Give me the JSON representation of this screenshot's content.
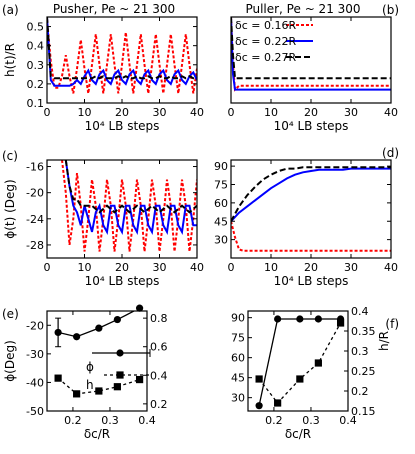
{
  "chart_data": [
    {
      "panel": "(a)",
      "type": "line",
      "title": "Pusher, Pe ~ 21 300",
      "xlabel": "10⁴ LB steps",
      "ylabel": "h(t)/R",
      "xlim": [
        0,
        40
      ],
      "ylim": [
        0.1,
        0.55
      ],
      "xticks": [
        0,
        10,
        20,
        30,
        40
      ],
      "yticks": [
        0.1,
        0.2,
        0.3,
        0.4,
        0.5
      ],
      "series": [
        {
          "name": "δc = 0.16R",
          "color": "#ff0000",
          "dash": "3,2",
          "x": [
            0,
            1,
            2,
            3,
            4,
            5,
            6,
            7,
            8,
            9,
            10,
            11,
            12,
            13,
            14,
            15,
            16,
            17,
            18,
            19,
            20,
            21,
            22,
            23,
            24,
            25,
            26,
            27,
            28,
            29,
            30,
            31,
            32,
            33,
            34,
            35,
            36,
            37,
            38,
            39,
            40
          ],
          "y": [
            0.54,
            0.32,
            0.18,
            0.18,
            0.24,
            0.35,
            0.24,
            0.15,
            0.28,
            0.43,
            0.28,
            0.15,
            0.3,
            0.46,
            0.3,
            0.15,
            0.3,
            0.46,
            0.3,
            0.15,
            0.3,
            0.47,
            0.3,
            0.15,
            0.3,
            0.46,
            0.3,
            0.15,
            0.3,
            0.46,
            0.3,
            0.15,
            0.3,
            0.46,
            0.3,
            0.15,
            0.3,
            0.46,
            0.3,
            0.15,
            0.28
          ]
        },
        {
          "name": "δc = 0.22R",
          "color": "#0000ff",
          "dash": "",
          "x": [
            0,
            1,
            2,
            3,
            4,
            5,
            6,
            7,
            8,
            9,
            10,
            11,
            12,
            13,
            14,
            15,
            16,
            17,
            18,
            19,
            20,
            21,
            22,
            23,
            24,
            25,
            26,
            27,
            28,
            29,
            30,
            31,
            32,
            33,
            34,
            35,
            36,
            37,
            38,
            39,
            40
          ],
          "y": [
            0.55,
            0.22,
            0.19,
            0.19,
            0.19,
            0.19,
            0.19,
            0.2,
            0.22,
            0.2,
            0.24,
            0.27,
            0.22,
            0.2,
            0.25,
            0.27,
            0.22,
            0.2,
            0.25,
            0.27,
            0.22,
            0.2,
            0.25,
            0.27,
            0.22,
            0.2,
            0.25,
            0.27,
            0.22,
            0.2,
            0.25,
            0.27,
            0.22,
            0.2,
            0.25,
            0.27,
            0.22,
            0.2,
            0.24,
            0.26,
            0.22
          ]
        },
        {
          "name": "δc = 0.27R",
          "color": "#000000",
          "dash": "6,3",
          "x": [
            0,
            1,
            2,
            3,
            4,
            5,
            6,
            7,
            8,
            9,
            10,
            11,
            12,
            13,
            14,
            15,
            16,
            17,
            18,
            19,
            20,
            21,
            22,
            23,
            24,
            25,
            26,
            27,
            28,
            29,
            30,
            31,
            32,
            33,
            34,
            35,
            36,
            37,
            38,
            39,
            40
          ],
          "y": [
            0.55,
            0.24,
            0.23,
            0.23,
            0.23,
            0.23,
            0.23,
            0.23,
            0.23,
            0.23,
            0.23,
            0.23,
            0.23,
            0.24,
            0.23,
            0.24,
            0.23,
            0.23,
            0.23,
            0.24,
            0.23,
            0.24,
            0.23,
            0.23,
            0.24,
            0.23,
            0.23,
            0.24,
            0.23,
            0.23,
            0.24,
            0.23,
            0.23,
            0.24,
            0.23,
            0.23,
            0.24,
            0.23,
            0.24,
            0.23,
            0.23
          ]
        }
      ]
    },
    {
      "panel": "(b)",
      "type": "line",
      "title": "Puller, Pe ~ 21 300",
      "xlabel": "10⁴ LB steps",
      "ylabel": "",
      "xlim": [
        0,
        40
      ],
      "ylim": [
        0.1,
        0.55
      ],
      "xticks": [
        0,
        10,
        20,
        30,
        40
      ],
      "yticks": [],
      "legend": [
        "δc = 0.16R",
        "δc = 0.22R",
        "δc = 0.27R"
      ],
      "series": [
        {
          "name": "δc = 0.16R",
          "color": "#ff0000",
          "dash": "3,2",
          "x": [
            0,
            0.5,
            1,
            2,
            4,
            6,
            8,
            10,
            12,
            14,
            16,
            18,
            20,
            22,
            24,
            26,
            28,
            30,
            32,
            34,
            36,
            38,
            40
          ],
          "y": [
            0.55,
            0.3,
            0.17,
            0.19,
            0.19,
            0.19,
            0.19,
            0.19,
            0.19,
            0.19,
            0.19,
            0.19,
            0.19,
            0.19,
            0.19,
            0.19,
            0.19,
            0.19,
            0.19,
            0.19,
            0.19,
            0.19,
            0.19
          ]
        },
        {
          "name": "δc = 0.22R",
          "color": "#0000ff",
          "dash": "",
          "x": [
            0,
            0.5,
            1,
            2,
            40
          ],
          "y": [
            0.55,
            0.25,
            0.17,
            0.17,
            0.17
          ]
        },
        {
          "name": "δc = 0.27R",
          "color": "#000000",
          "dash": "6,3",
          "x": [
            0,
            0.5,
            1,
            2,
            40
          ],
          "y": [
            0.55,
            0.35,
            0.23,
            0.23,
            0.23
          ]
        }
      ]
    },
    {
      "panel": "(c)",
      "type": "line",
      "title": "",
      "xlabel": "10⁴ LB steps",
      "ylabel": "ϕ(t) (Deg)",
      "xlim": [
        0,
        40
      ],
      "ylim": [
        -30,
        -15
      ],
      "xticks": [
        0,
        10,
        20,
        30,
        40
      ],
      "yticks": [
        -16,
        -20,
        -24,
        -28
      ],
      "series": [
        {
          "name": "δc = 0.16R",
          "color": "#ff0000",
          "dash": "3,2",
          "x": [
            4,
            5,
            6,
            7,
            8,
            9,
            10,
            11,
            12,
            13,
            14,
            15,
            16,
            17,
            18,
            19,
            20,
            21,
            22,
            23,
            24,
            25,
            26,
            27,
            28,
            29,
            30,
            31,
            32,
            33,
            34,
            35,
            36,
            37,
            38,
            39,
            40
          ],
          "y": [
            -15,
            -20,
            -28,
            -24,
            -17,
            -22,
            -29,
            -24,
            -18,
            -22,
            -29,
            -24,
            -18,
            -22,
            -29,
            -24,
            -18,
            -22,
            -29,
            -24,
            -18,
            -22,
            -29,
            -24,
            -18,
            -22,
            -29,
            -24,
            -18,
            -22,
            -29,
            -24,
            -18,
            -22,
            -29,
            -24,
            -18
          ]
        },
        {
          "name": "δc = 0.22R",
          "color": "#0000ff",
          "dash": "",
          "x": [
            5,
            6,
            7,
            8,
            9,
            10,
            11,
            12,
            13,
            14,
            15,
            16,
            17,
            18,
            19,
            20,
            21,
            22,
            23,
            24,
            25,
            26,
            27,
            28,
            29,
            30,
            31,
            32,
            33,
            34,
            35,
            36,
            37,
            38,
            39,
            40
          ],
          "y": [
            -15,
            -19,
            -22,
            -23,
            -25,
            -22,
            -24,
            -26,
            -23,
            -22,
            -25,
            -26,
            -22,
            -22,
            -25,
            -26,
            -22,
            -22,
            -25,
            -26,
            -22,
            -22,
            -25,
            -26,
            -22,
            -22,
            -25,
            -26,
            -22,
            -22,
            -25,
            -26,
            -22,
            -22,
            -25,
            -25
          ]
        },
        {
          "name": "δc = 0.27R",
          "color": "#000000",
          "dash": "6,3",
          "x": [
            5,
            6,
            7,
            8,
            9,
            10,
            12,
            14,
            16,
            18,
            20,
            22,
            24,
            26,
            28,
            30,
            32,
            34,
            36,
            38,
            40
          ],
          "y": [
            -15,
            -19,
            -21,
            -21,
            -22,
            -22,
            -22,
            -23,
            -22,
            -23,
            -22,
            -23,
            -22,
            -23,
            -22,
            -23,
            -22,
            -23,
            -22,
            -23,
            -22
          ]
        }
      ]
    },
    {
      "panel": "(d)",
      "type": "line",
      "title": "",
      "xlabel": "10⁴ LB steps",
      "ylabel": "",
      "xlim": [
        0,
        40
      ],
      "ylim": [
        15,
        95
      ],
      "xticks": [
        0,
        10,
        20,
        30,
        40
      ],
      "yticks": [
        30,
        45,
        60,
        75,
        90
      ],
      "series": [
        {
          "name": "δc = 0.16R",
          "color": "#ff0000",
          "dash": "3,2",
          "x": [
            0,
            1,
            2,
            3,
            5,
            10,
            15,
            20,
            25,
            30,
            35,
            40
          ],
          "y": [
            45,
            32,
            22,
            21,
            21,
            21,
            21,
            21,
            21,
            21,
            21,
            21
          ]
        },
        {
          "name": "δc = 0.22R",
          "color": "#0000ff",
          "dash": "",
          "x": [
            0,
            2,
            4,
            6,
            8,
            10,
            12,
            14,
            16,
            18,
            20,
            22,
            24,
            26,
            28,
            30,
            32,
            34,
            36,
            38,
            40
          ],
          "y": [
            45,
            52,
            57,
            62,
            67,
            72,
            76,
            80,
            83,
            85,
            86,
            87,
            87,
            87,
            87,
            88,
            88,
            88,
            88,
            88,
            88
          ]
        },
        {
          "name": "δc = 0.27R",
          "color": "#000000",
          "dash": "6,3",
          "x": [
            0,
            2,
            4,
            6,
            8,
            10,
            12,
            14,
            16,
            18,
            20,
            24,
            28,
            32,
            36,
            40
          ],
          "y": [
            45,
            57,
            66,
            73,
            79,
            83,
            86,
            88,
            88,
            89,
            89,
            89,
            89,
            89,
            89,
            89
          ]
        }
      ]
    },
    {
      "panel": "(e)",
      "type": "line",
      "title": "",
      "xlabel": "δc/R",
      "ylabel": "ϕ(Deg)",
      "y2label": "",
      "xlim": [
        0.13,
        0.4
      ],
      "ylim": [
        -50,
        -15
      ],
      "y2lim": [
        0.15,
        0.85
      ],
      "xticks": [
        0.2,
        0.3,
        0.4
      ],
      "yticks": [
        -20,
        -30,
        -40,
        -50
      ],
      "y2ticks": [
        0.2,
        0.4,
        0.6,
        0.8
      ],
      "legend": [
        "ϕ",
        "h"
      ],
      "series": [
        {
          "name": "ϕ",
          "axis": "left",
          "marker": "circle",
          "dash": "",
          "x": [
            0.16,
            0.21,
            0.27,
            0.32,
            0.38
          ],
          "y": [
            -22.5,
            -24,
            -21,
            -18,
            -14
          ]
        },
        {
          "name": "h",
          "axis": "right",
          "marker": "square",
          "dash": "3,3",
          "x": [
            0.16,
            0.21,
            0.27,
            0.32,
            0.38
          ],
          "y": [
            0.38,
            0.27,
            0.29,
            0.32,
            0.37
          ]
        }
      ],
      "error_bar": {
        "x": 0.16,
        "y": -22.5,
        "dy": 5
      }
    },
    {
      "panel": "(f)",
      "type": "line",
      "title": "",
      "xlabel": "δc/R",
      "ylabel": "",
      "y2label": "h/R",
      "xlim": [
        0.13,
        0.4
      ],
      "ylim": [
        20,
        95
      ],
      "y2lim": [
        0.15,
        0.4
      ],
      "xticks": [
        0.2,
        0.3,
        0.4
      ],
      "yticks": [
        30,
        45,
        60,
        75,
        90
      ],
      "y2ticks": [
        0.15,
        0.2,
        0.25,
        0.3,
        0.35,
        0.4
      ],
      "series": [
        {
          "name": "ϕ",
          "axis": "left",
          "marker": "circle",
          "dash": "",
          "x": [
            0.16,
            0.21,
            0.27,
            0.32,
            0.38
          ],
          "y": [
            24,
            89,
            89,
            89,
            89
          ]
        },
        {
          "name": "h",
          "axis": "right",
          "marker": "square",
          "dash": "3,3",
          "x": [
            0.16,
            0.21,
            0.27,
            0.32,
            0.38
          ],
          "y": [
            0.23,
            0.17,
            0.23,
            0.27,
            0.37
          ]
        }
      ]
    }
  ]
}
